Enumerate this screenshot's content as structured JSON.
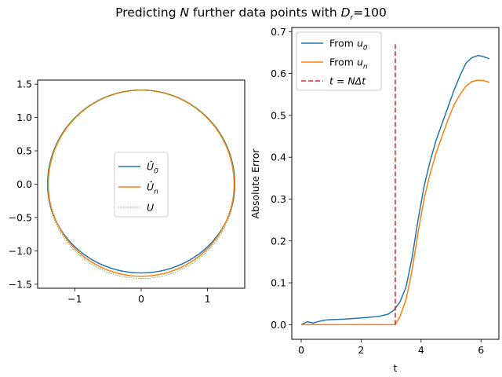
{
  "figure": {
    "title_prefix": "Predicting ",
    "title_var": "N",
    "title_middle": " further data points with ",
    "title_var2": "D",
    "title_sub": "r",
    "title_suffix": "=100"
  },
  "chart_data": [
    {
      "type": "line",
      "panel": "left",
      "xlim": [
        -1.56,
        1.56
      ],
      "ylim": [
        -1.56,
        1.56
      ],
      "xticks": [
        -1,
        0,
        1
      ],
      "xtick_labels": [
        "−1",
        "0",
        "1"
      ],
      "yticks": [
        -1.5,
        -1.0,
        -0.5,
        0.0,
        0.5,
        1.0,
        1.5
      ],
      "ytick_labels": [
        "−1.5",
        "−1.0",
        "−0.5",
        "0.0",
        "0.5",
        "1.0",
        "1.5"
      ],
      "grid": false,
      "legend_position": "center",
      "series": [
        {
          "name": "Û0",
          "label_base": "Û",
          "label_sub": "0",
          "color": "#1f77b4",
          "style": "solid",
          "kind": "orbit",
          "top": 1.41,
          "bottom": -1.33,
          "half_width": 1.41
        },
        {
          "name": "Ûn",
          "label_base": "Û",
          "label_sub": "n",
          "color": "#ff7f0e",
          "style": "solid",
          "kind": "orbit",
          "top": 1.41,
          "bottom": -1.38,
          "half_width": 1.4
        },
        {
          "name": "U",
          "label_base": "U",
          "label_sub": "",
          "color": "#2ca02c",
          "style": "dotted",
          "kind": "orbit",
          "top": 1.414,
          "bottom": -1.414,
          "half_width": 1.414
        }
      ]
    },
    {
      "type": "line",
      "panel": "right",
      "xlabel": "t",
      "ylabel": "Absolute Error",
      "xlim": [
        -0.314,
        6.597
      ],
      "ylim": [
        -0.035,
        0.71
      ],
      "xticks": [
        0,
        2,
        4,
        6
      ],
      "xtick_labels": [
        "0",
        "2",
        "4",
        "6"
      ],
      "yticks": [
        0.0,
        0.1,
        0.2,
        0.3,
        0.4,
        0.5,
        0.6,
        0.7
      ],
      "ytick_labels": [
        "0.0",
        "0.1",
        "0.2",
        "0.3",
        "0.4",
        "0.5",
        "0.6",
        "0.7"
      ],
      "grid": false,
      "legend_position": "upper left",
      "series": [
        {
          "name": "From u0",
          "label_base": "From u",
          "label_sub": "0",
          "color": "#1f77b4",
          "style": "solid",
          "x": [
            0,
            0.2,
            0.4,
            0.6,
            0.8,
            1.0,
            1.4,
            1.8,
            2.2,
            2.6,
            2.9,
            3.1,
            3.3,
            3.5,
            3.7,
            3.9,
            4.1,
            4.3,
            4.5,
            4.7,
            4.9,
            5.1,
            5.3,
            5.5,
            5.7,
            5.9,
            6.0,
            6.1,
            6.283
          ],
          "y": [
            0.0,
            0.007,
            0.004,
            0.008,
            0.011,
            0.012,
            0.013,
            0.015,
            0.017,
            0.02,
            0.025,
            0.035,
            0.055,
            0.09,
            0.16,
            0.25,
            0.33,
            0.39,
            0.44,
            0.48,
            0.52,
            0.56,
            0.595,
            0.625,
            0.638,
            0.643,
            0.642,
            0.64,
            0.635
          ]
        },
        {
          "name": "From un",
          "label_base": "From u",
          "label_sub": "n",
          "color": "#ff7f0e",
          "style": "solid",
          "x": [
            0,
            0.5,
            1.0,
            1.5,
            2.0,
            2.5,
            3.0,
            3.14,
            3.3,
            3.5,
            3.7,
            3.9,
            4.1,
            4.3,
            4.5,
            4.7,
            4.9,
            5.1,
            5.3,
            5.5,
            5.7,
            5.9,
            6.1,
            6.283
          ],
          "y": [
            0.0,
            0.0,
            0.0,
            0.0,
            0.0,
            0.0,
            0.0,
            0.0,
            0.02,
            0.06,
            0.13,
            0.22,
            0.3,
            0.36,
            0.41,
            0.45,
            0.49,
            0.525,
            0.55,
            0.57,
            0.581,
            0.584,
            0.583,
            0.579
          ]
        },
        {
          "name": "t = NΔt",
          "label_text": "t = NΔt",
          "color": "#d62728",
          "style": "dashed",
          "kind": "vline",
          "x_value": 3.14,
          "y_range": [
            0.0,
            0.675
          ]
        }
      ]
    }
  ]
}
